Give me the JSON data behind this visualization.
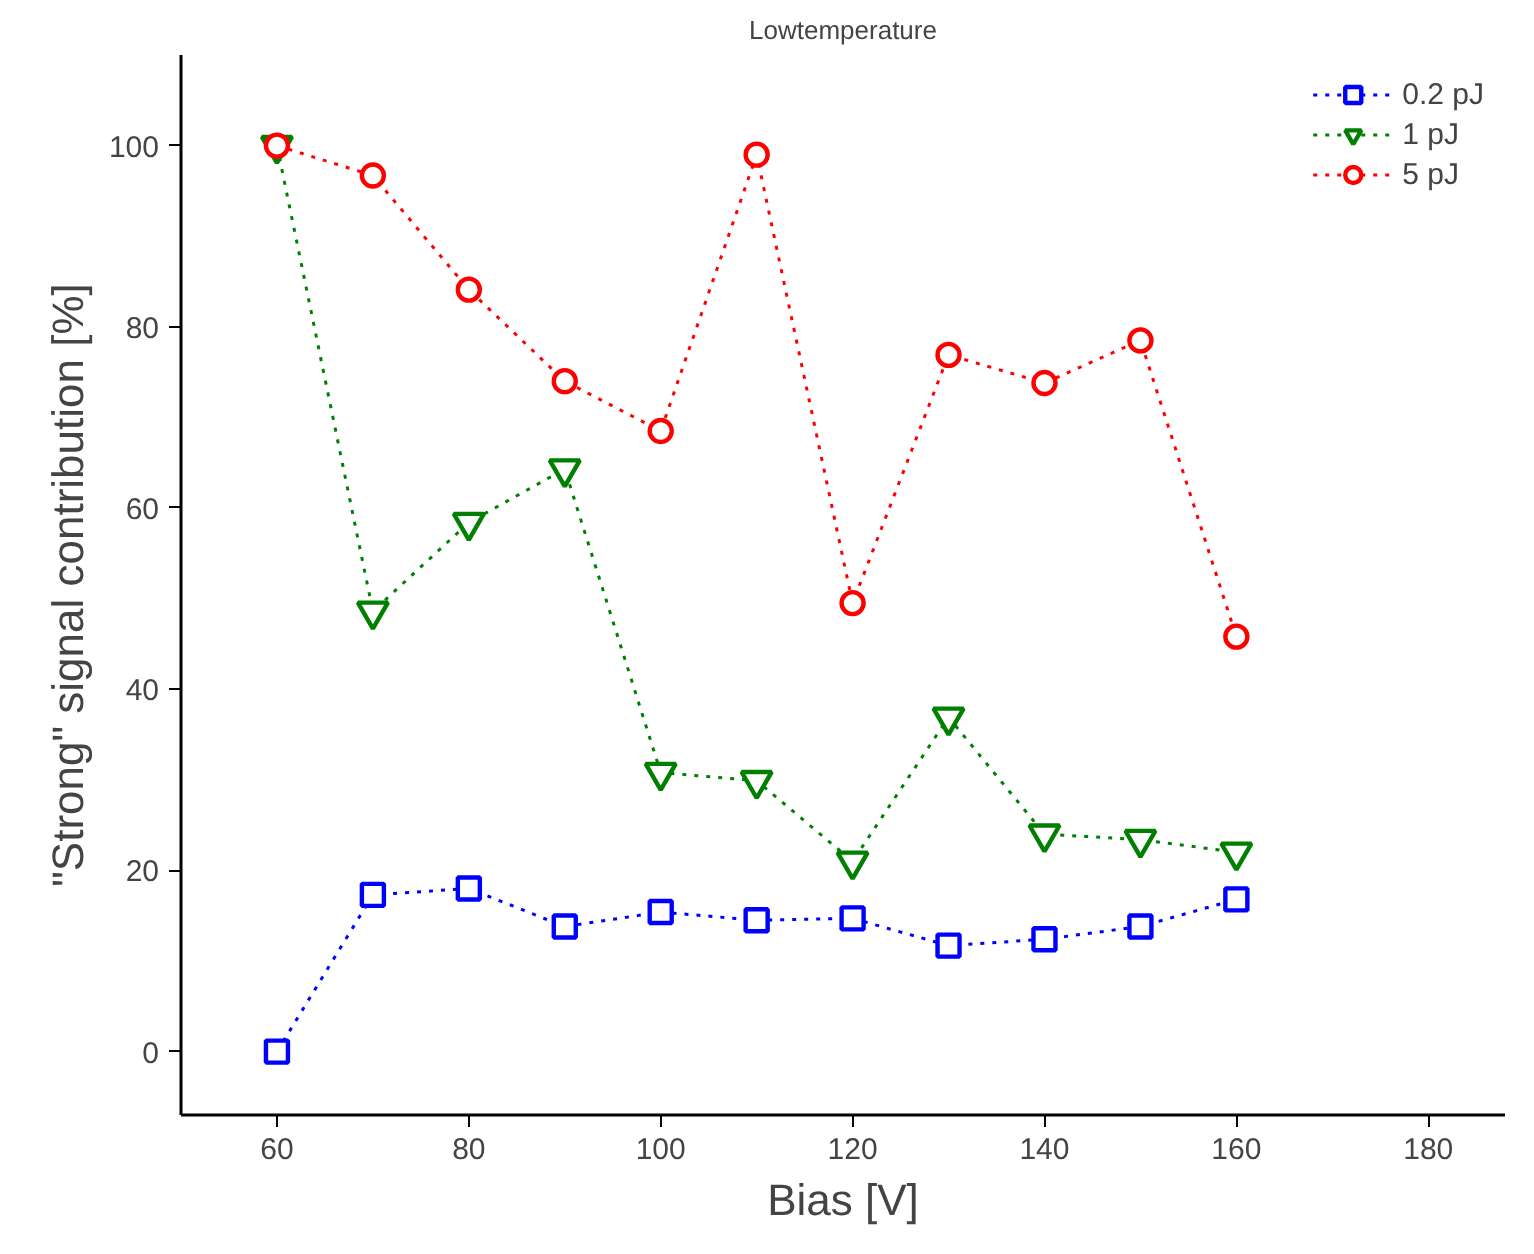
{
  "chart_data": {
    "type": "line",
    "title": "Lowtemperature",
    "xlabel": "Bias [V]",
    "ylabel": "\"Strong\" signal contribution [%]",
    "x": [
      60,
      70,
      80,
      90,
      100,
      110,
      120,
      130,
      140,
      150,
      160
    ],
    "series": [
      {
        "name": "0.2 pJ",
        "color": "#0000ff",
        "marker": "square",
        "values": [
          0,
          17.3,
          18,
          13.8,
          15.4,
          14.5,
          14.7,
          11.7,
          12.4,
          13.8,
          16.8
        ]
      },
      {
        "name": "1 pJ",
        "color": "#008000",
        "marker": "triangle",
        "values": [
          100,
          48.6,
          58.4,
          64.3,
          30.8,
          29.9,
          21,
          36.9,
          24,
          23.4,
          22
        ]
      },
      {
        "name": "5 pJ",
        "color": "#ff0000",
        "marker": "circle",
        "values": [
          100,
          96.7,
          84.1,
          74,
          68.5,
          99,
          49.5,
          76.9,
          73.8,
          78.5,
          45.8
        ]
      }
    ],
    "line_style": "dotted",
    "xlim": [
      50,
      188
    ],
    "ylim": [
      -7,
      110
    ],
    "xticks": [
      60,
      80,
      100,
      120,
      140,
      160,
      180
    ],
    "yticks": [
      0,
      20,
      40,
      60,
      80,
      100
    ],
    "grid": false,
    "legend": "top right"
  }
}
